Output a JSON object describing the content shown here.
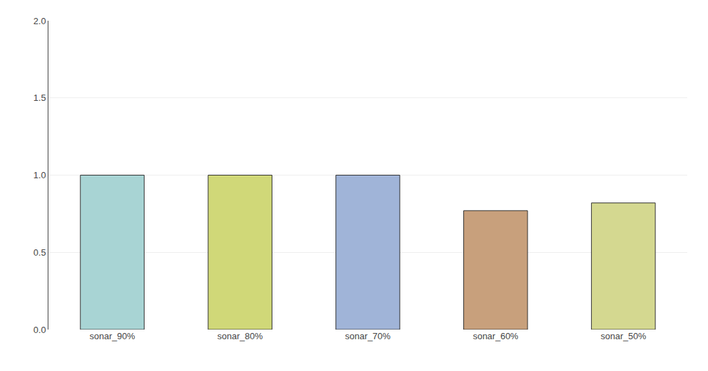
{
  "chart_data": {
    "type": "bar",
    "categories": [
      "sonar_90%",
      "sonar_80%",
      "sonar_70%",
      "sonar_60%",
      "sonar_50%"
    ],
    "values": [
      1.0,
      1.0,
      1.0,
      0.77,
      0.82
    ],
    "colors": [
      "#a8d4d4",
      "#d0d878",
      "#a0b4d8",
      "#c8a07c",
      "#d4d890"
    ],
    "ylim": [
      0.0,
      2.0
    ],
    "yticks": [
      {
        "value": 0.0,
        "label": "0.0"
      },
      0.5,
      {
        "value": 1.0,
        "label": "1.0"
      },
      1.5,
      {
        "value": 2.0,
        "label": "2.0"
      }
    ],
    "grid": true
  }
}
